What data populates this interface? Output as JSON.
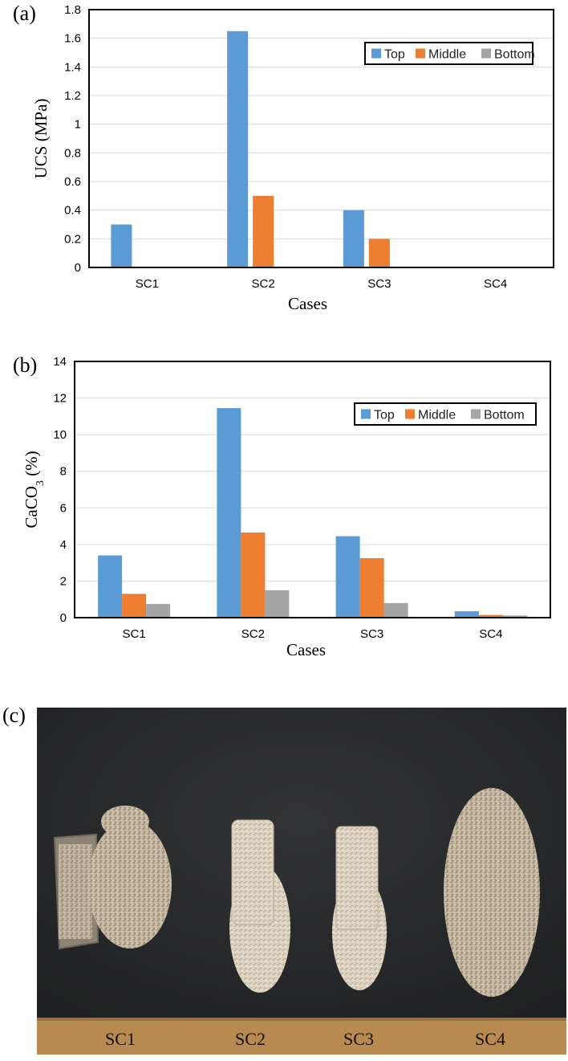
{
  "panels": {
    "a_label": "(a)",
    "b_label": "(b)",
    "c_label": "(c)"
  },
  "legend": {
    "items": [
      {
        "name": "Top",
        "color": "#5B9BD5"
      },
      {
        "name": "Middle",
        "color": "#ED7D31"
      },
      {
        "name": "Bottom",
        "color": "#A5A5A5"
      }
    ]
  },
  "chart_data": [
    {
      "type": "bar",
      "panel": "(a)",
      "categories": [
        "SC1",
        "SC2",
        "SC3",
        "SC4"
      ],
      "series": [
        {
          "name": "Top",
          "values": [
            0.3,
            1.65,
            0.4,
            0
          ]
        },
        {
          "name": "Middle",
          "values": [
            0,
            0.5,
            0.2,
            0
          ]
        },
        {
          "name": "Bottom",
          "values": [
            0,
            0,
            0,
            0
          ]
        }
      ],
      "xlabel": "Cases",
      "ylabel": "UCS (MPa)",
      "ylim": [
        0,
        1.8
      ],
      "yticks": [
        "0",
        "0.2",
        "0.4",
        "0.6",
        "0.8",
        "1",
        "1.2",
        "1.4",
        "1.6",
        "1.8"
      ],
      "grid": true,
      "legend_position": "top-right"
    },
    {
      "type": "bar",
      "panel": "(b)",
      "categories": [
        "SC1",
        "SC2",
        "SC3",
        "SC4"
      ],
      "series": [
        {
          "name": "Top",
          "values": [
            3.4,
            11.45,
            4.45,
            0.35
          ]
        },
        {
          "name": "Middle",
          "values": [
            1.3,
            4.65,
            3.25,
            0.15
          ]
        },
        {
          "name": "Bottom",
          "values": [
            0.75,
            1.5,
            0.8,
            0.12
          ]
        }
      ],
      "xlabel": "Cases",
      "ylabel": "CaCO3 (%)",
      "ylim": [
        0,
        14
      ],
      "yticks": [
        "0",
        "2",
        "4",
        "6",
        "8",
        "10",
        "12",
        "14"
      ],
      "grid": true,
      "legend_position": "top-right"
    }
  ],
  "photo": {
    "caption_labels": [
      "SC1",
      "SC2",
      "SC3",
      "SC4"
    ]
  }
}
